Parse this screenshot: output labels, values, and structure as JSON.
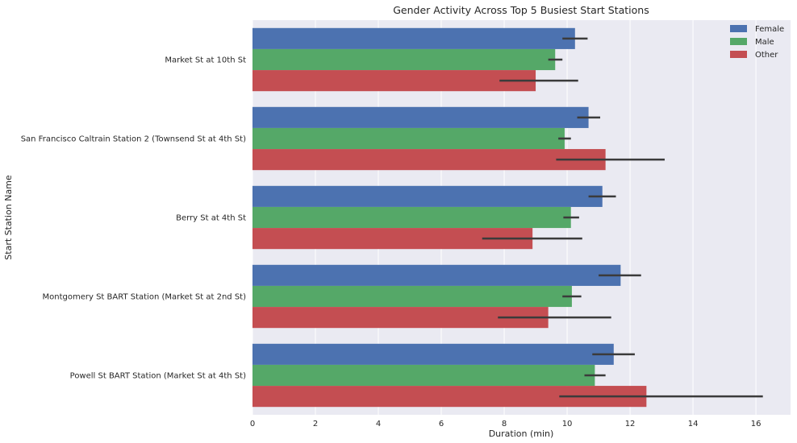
{
  "chart_data": {
    "type": "bar",
    "orientation": "horizontal",
    "title": "Gender Activity Across Top 5 Busiest Start Stations",
    "xlabel": "Duration (min)",
    "ylabel": "Start Station Name",
    "xlim": [
      0,
      17.1
    ],
    "xticks": [
      0,
      2,
      4,
      6,
      8,
      10,
      12,
      14,
      16
    ],
    "grid": true,
    "legend_position": "top-right",
    "categories": [
      "Market St at 10th St",
      "San Francisco Caltrain Station 2  (Townsend St at 4th St)",
      "Berry St at 4th St",
      "Montgomery St BART Station (Market St at 2nd St)",
      "Powell St BART Station (Market St at 4th St)"
    ],
    "series": [
      {
        "name": "Female",
        "color": "#4c72b0",
        "values": [
          10.25,
          10.68,
          11.12,
          11.7,
          11.48
        ],
        "ci_low": [
          9.85,
          10.32,
          10.68,
          11.0,
          10.8
        ],
        "ci_high": [
          10.65,
          11.05,
          11.55,
          12.35,
          12.15
        ]
      },
      {
        "name": "Male",
        "color": "#55a868",
        "values": [
          9.62,
          9.92,
          10.12,
          10.15,
          10.88
        ],
        "ci_low": [
          9.4,
          9.72,
          9.88,
          9.85,
          10.55
        ],
        "ci_high": [
          9.85,
          10.12,
          10.38,
          10.45,
          11.22
        ]
      },
      {
        "name": "Other",
        "color": "#c44e52",
        "values": [
          9.0,
          11.22,
          8.9,
          9.4,
          12.52
        ],
        "ci_low": [
          7.85,
          9.65,
          7.3,
          7.8,
          9.75
        ],
        "ci_high": [
          10.35,
          13.1,
          10.48,
          11.4,
          16.22
        ]
      }
    ],
    "colors": {
      "plot_background": "#eaeaf2",
      "grid": "#ffffff",
      "errorbar": "#3b3b3b"
    }
  }
}
